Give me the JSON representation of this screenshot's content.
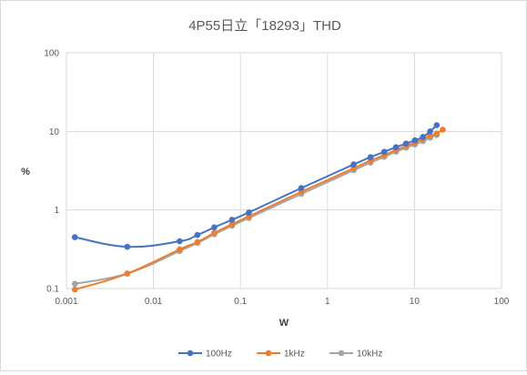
{
  "chart_data": {
    "type": "line",
    "title": "4P55日立「18293」THD",
    "xlabel": "W",
    "ylabel": "%",
    "xscale": "log",
    "yscale": "log",
    "xlim": [
      0.001,
      100
    ],
    "ylim": [
      0.1,
      100
    ],
    "xticks": [
      "0.001",
      "0.01",
      "0.1",
      "1",
      "10",
      "100"
    ],
    "yticks": [
      "0.1",
      "1",
      "10",
      "100"
    ],
    "grid": "major",
    "legend_position": "bottom",
    "series": [
      {
        "name": "100Hz",
        "color": "#4472C4",
        "points": [
          [
            0.00125,
            0.45
          ],
          [
            0.005,
            0.34
          ],
          [
            0.02,
            0.4
          ],
          [
            0.032,
            0.48
          ],
          [
            0.05,
            0.6
          ],
          [
            0.08,
            0.75
          ],
          [
            0.125,
            0.93
          ],
          [
            0.5,
            1.9
          ],
          [
            2,
            3.8
          ],
          [
            3.125,
            4.7
          ],
          [
            4.5,
            5.5
          ],
          [
            6.125,
            6.3
          ],
          [
            8,
            7.0
          ],
          [
            10.125,
            7.7
          ],
          [
            12.5,
            8.5
          ],
          [
            15.125,
            10.0
          ],
          [
            18,
            12.0
          ]
        ]
      },
      {
        "name": "1kHz",
        "color": "#ED7D31",
        "points": [
          [
            0.00125,
            0.097
          ],
          [
            0.005,
            0.155
          ],
          [
            0.02,
            0.315
          ],
          [
            0.032,
            0.39
          ],
          [
            0.05,
            0.51
          ],
          [
            0.08,
            0.66
          ],
          [
            0.125,
            0.83
          ],
          [
            0.5,
            1.7
          ],
          [
            2,
            3.4
          ],
          [
            3.125,
            4.25
          ],
          [
            4.5,
            5.0
          ],
          [
            6.125,
            5.8
          ],
          [
            8,
            6.5
          ],
          [
            10.125,
            7.2
          ],
          [
            12.5,
            8.0
          ],
          [
            15.125,
            8.8
          ],
          [
            18,
            9.4
          ],
          [
            21.125,
            10.5
          ]
        ]
      },
      {
        "name": "10kHz",
        "color": "#A5A5A5",
        "points": [
          [
            0.00125,
            0.115
          ],
          [
            0.005,
            0.155
          ],
          [
            0.02,
            0.3
          ],
          [
            0.032,
            0.38
          ],
          [
            0.05,
            0.49
          ],
          [
            0.08,
            0.63
          ],
          [
            0.125,
            0.79
          ],
          [
            0.5,
            1.6
          ],
          [
            2,
            3.2
          ],
          [
            3.125,
            4.0
          ],
          [
            4.5,
            4.75
          ],
          [
            6.125,
            5.5
          ],
          [
            8,
            6.2
          ],
          [
            10.125,
            6.8
          ],
          [
            12.5,
            7.5
          ],
          [
            15.125,
            8.3
          ],
          [
            18,
            9.0
          ]
        ]
      }
    ]
  }
}
